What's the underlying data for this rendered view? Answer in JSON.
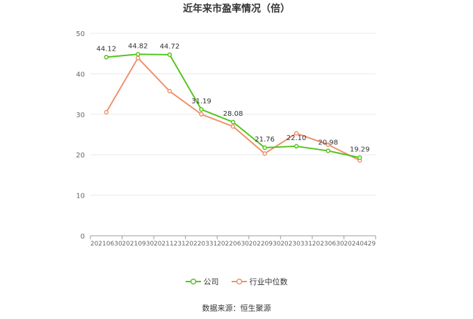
{
  "chart_data": {
    "type": "line",
    "title": "近年来市盈率情况（倍）",
    "categories": [
      "20210630",
      "20210930",
      "20211231",
      "20220331",
      "20220630",
      "20220930",
      "20230331",
      "20230630",
      "20240429"
    ],
    "ylim": [
      0,
      50
    ],
    "yticks": [
      0,
      10,
      20,
      30,
      40,
      50
    ],
    "grid": true,
    "legend_position": "bottom",
    "series": [
      {
        "name": "公司",
        "color": "#52c41a",
        "values": [
          44.12,
          44.82,
          44.72,
          31.19,
          28.08,
          21.76,
          22.1,
          20.98,
          19.29
        ],
        "labels": true
      },
      {
        "name": "行业中位数",
        "color": "#f0906a",
        "values": [
          30.5,
          43.9,
          35.7,
          30.0,
          27.0,
          20.3,
          25.3,
          22.5,
          18.6
        ],
        "labels": false
      }
    ]
  },
  "source_text": "数据来源：恒生聚源"
}
